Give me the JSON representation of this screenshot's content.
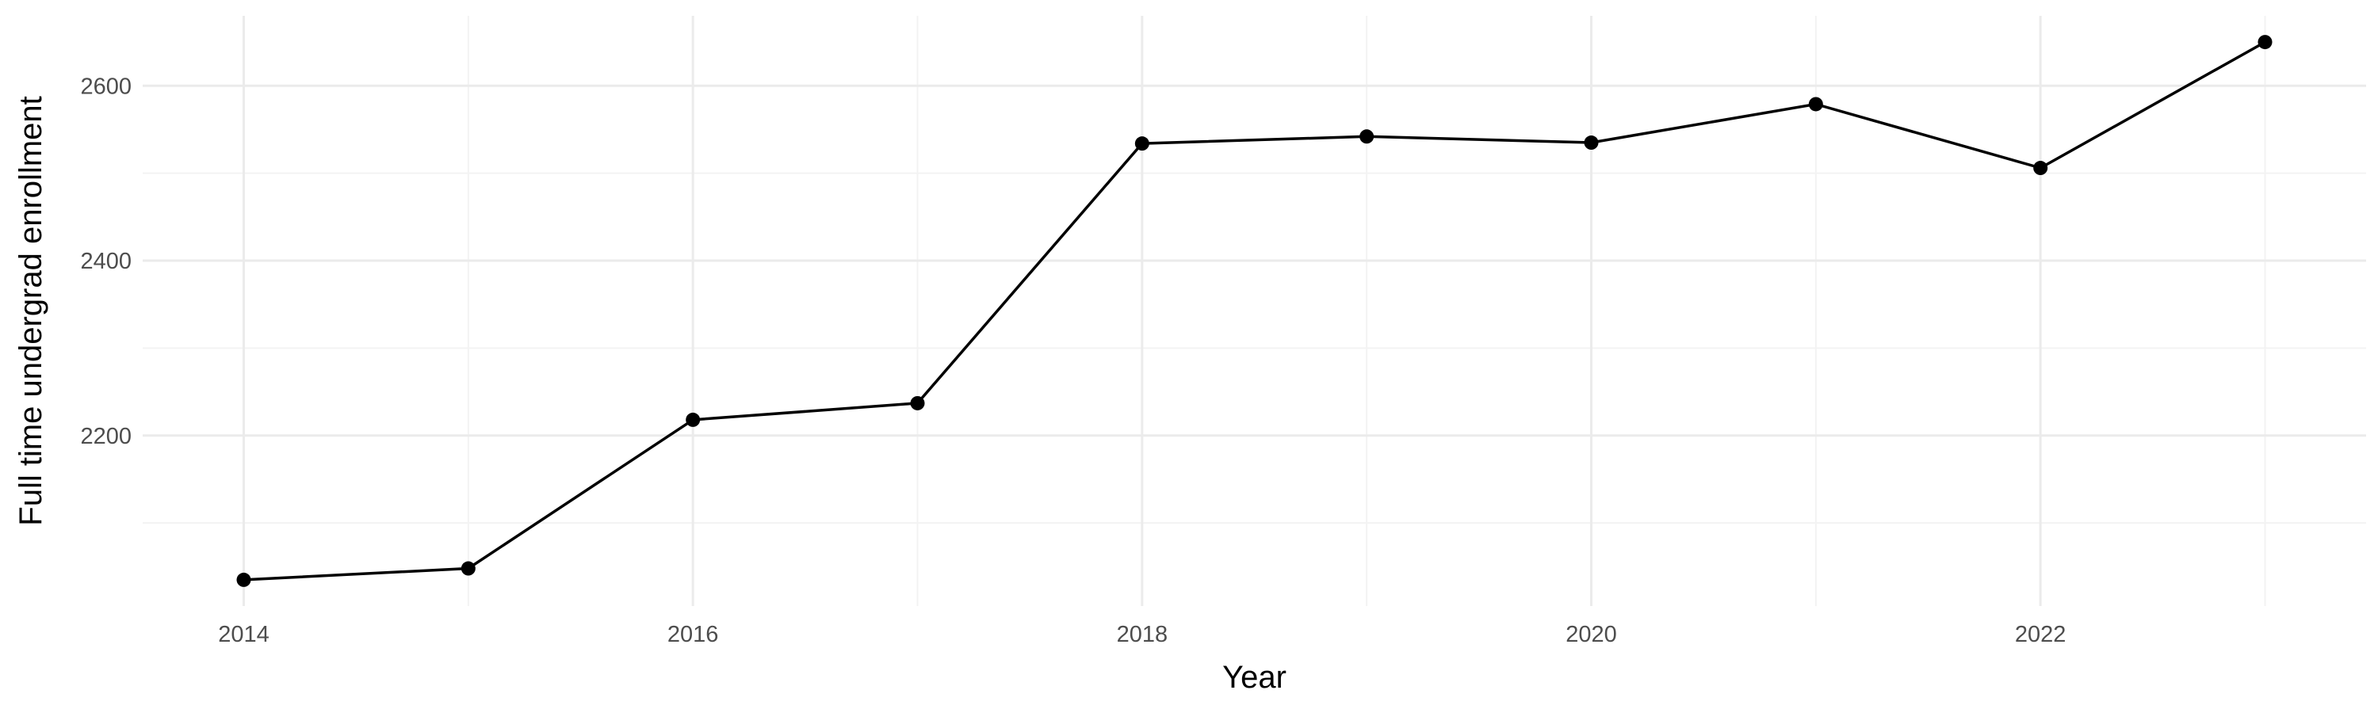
{
  "colors": {
    "background": "#ffffff",
    "grid_major": "#ebebeb",
    "grid_minor": "#f3f3f3",
    "line": "#000000",
    "point": "#000000",
    "tick_text": "#4d4d4d",
    "axis_title": "#000000"
  },
  "chart_data": {
    "type": "line",
    "title": "",
    "xlabel": "Year",
    "ylabel": "Full time undergrad enrollment",
    "x": [
      2014,
      2015,
      2016,
      2017,
      2018,
      2019,
      2020,
      2021,
      2022,
      2023
    ],
    "series": [
      {
        "values": [
          2035,
          2048,
          2218,
          2237,
          2534,
          2542,
          2535,
          2579,
          2506,
          2650
        ],
        "markers": true
      }
    ],
    "xlim": [
      2013.55,
      2023.45
    ],
    "ylim": [
      2005,
      2680
    ],
    "x_ticks": [
      2014,
      2016,
      2018,
      2020,
      2022
    ],
    "x_minor_ticks": [
      2015,
      2017,
      2019,
      2021,
      2023
    ],
    "y_ticks": [
      2200,
      2400,
      2600
    ],
    "y_minor_ticks": [
      2100,
      2300,
      2500
    ],
    "x_tick_labels": [
      "2014",
      "2016",
      "2018",
      "2020",
      "2022"
    ],
    "y_tick_labels": [
      "2200",
      "2400",
      "2600"
    ],
    "grid": true,
    "legend": "none"
  }
}
